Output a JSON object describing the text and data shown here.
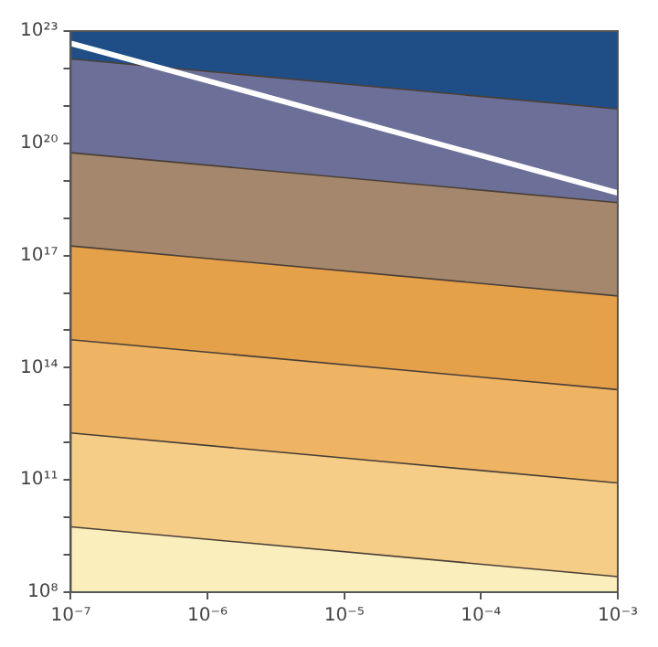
{
  "chart_data": {
    "type": "area",
    "log": "xy",
    "x": [
      1e-07,
      0.001
    ],
    "series": [
      {
        "color": "#fbeebd",
        "values": [
          5600000000.0,
          260000000.0
        ]
      },
      {
        "color": "#f5cd86",
        "values": [
          1800000000000.0,
          83000000000.0
        ]
      },
      {
        "color": "#eeb464",
        "values": [
          560000000000000.0,
          26000000000000.0
        ]
      },
      {
        "color": "#e5a04a",
        "values": [
          1.8e+17,
          8300000000000000.0
        ]
      },
      {
        "color": "#a4876c",
        "values": [
          5.6e+19,
          2.6e+18
        ]
      },
      {
        "color": "#6c7099",
        "values": [
          1.8e+22,
          8.3e+20
        ]
      },
      {
        "color": "#1f4e86",
        "values": [
          1e+23,
          1e+23
        ]
      },
      {
        "type": "line",
        "color": "#ffffff",
        "values": [
          4.7e+22,
          4.7e+18
        ]
      }
    ],
    "xlim": [
      1e-07,
      0.001
    ],
    "ylim": [
      100000000.0,
      1e+23
    ],
    "xticks": [
      {
        "value": 1e-07,
        "label": "10⁻⁷"
      },
      {
        "value": 1e-06,
        "label": "10⁻⁶"
      },
      {
        "value": 1e-05,
        "label": "10⁻⁵"
      },
      {
        "value": 0.0001,
        "label": "10⁻⁴"
      },
      {
        "value": 0.001,
        "label": "10⁻³"
      }
    ],
    "yticks": [
      {
        "value": 100000000.0,
        "label": "10⁸"
      },
      {
        "value": 1000000000.0,
        "label": null
      },
      {
        "value": 10000000000.0,
        "label": null
      },
      {
        "value": 100000000000.0,
        "label": "10¹¹"
      },
      {
        "value": 1000000000000.0,
        "label": null
      },
      {
        "value": 10000000000000.0,
        "label": null
      },
      {
        "value": 100000000000000.0,
        "label": "10¹⁴"
      },
      {
        "value": 1000000000000000.0,
        "label": null
      },
      {
        "value": 1e+16,
        "label": null
      },
      {
        "value": 1e+17,
        "label": "10¹⁷"
      },
      {
        "value": 1e+18,
        "label": null
      },
      {
        "value": 1e+19,
        "label": null
      },
      {
        "value": 1e+20,
        "label": "10²⁰"
      },
      {
        "value": 1e+21,
        "label": null
      },
      {
        "value": 1e+22,
        "label": null
      },
      {
        "value": 1e+23,
        "label": "10²³"
      }
    ],
    "legend": false
  }
}
